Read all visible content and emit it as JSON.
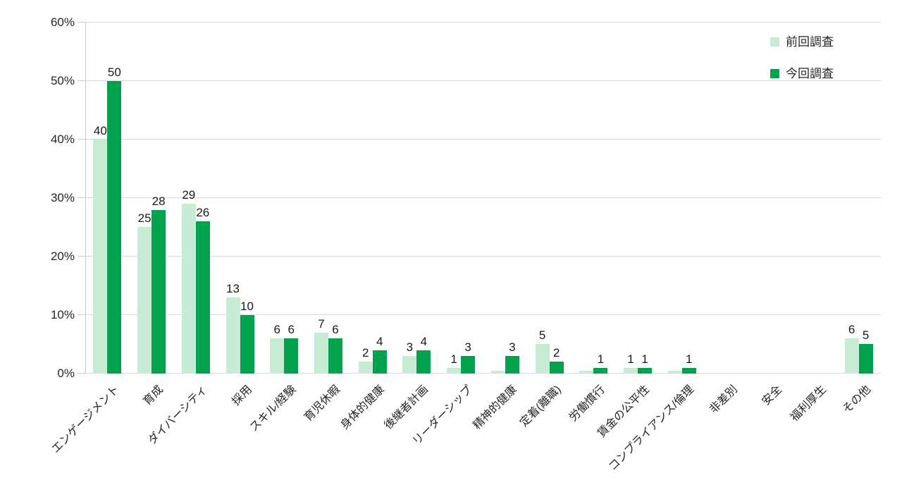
{
  "chart_data": {
    "type": "bar",
    "title": "",
    "xlabel": "",
    "ylabel": "",
    "ylim": [
      0,
      60
    ],
    "ytick_labels": [
      "0%",
      "10%",
      "20%",
      "30%",
      "40%",
      "50%",
      "60%"
    ],
    "grid": true,
    "legend_position": "top-right",
    "categories": [
      "エンゲージメント",
      "育成",
      "ダイバーシティ",
      "採用",
      "スキル/経験",
      "育児休暇",
      "身体的健康",
      "後継者計画",
      "リーダーシップ",
      "精神的健康",
      "定着(離職)",
      "労働慣行",
      "賃金の公平性",
      "コンプライアンス/倫理",
      "非差別",
      "安全",
      "福利厚生",
      "その他"
    ],
    "series": [
      {
        "name": "前回調査",
        "color": "#C8ECD3",
        "values": [
          40,
          25,
          29,
          13,
          6,
          7,
          2,
          3,
          1,
          0.5,
          5,
          0.5,
          1,
          0.5,
          0,
          0,
          0,
          6
        ],
        "data_labels": [
          "40",
          "25",
          "29",
          "13",
          "6",
          "7",
          "2",
          "3",
          "1",
          "",
          "5",
          "",
          "1",
          "",
          "",
          "",
          "",
          "6"
        ]
      },
      {
        "name": "今回調査",
        "color": "#00A24D",
        "values": [
          50,
          28,
          26,
          10,
          6,
          6,
          4,
          4,
          3,
          3,
          2,
          1,
          1,
          1,
          0,
          0,
          0,
          5
        ],
        "data_labels": [
          "50",
          "28",
          "26",
          "10",
          "6",
          "6",
          "4",
          "4",
          "3",
          "3",
          "2",
          "1",
          "1",
          "1",
          "",
          "",
          "",
          "5"
        ]
      }
    ]
  },
  "legend": {
    "items": [
      {
        "label": "前回調査",
        "color": "#C8ECD3"
      },
      {
        "label": "今回調査",
        "color": "#00A24D"
      }
    ]
  },
  "colors": {
    "series_previous": "#C8ECD3",
    "series_current": "#00A24D",
    "gridline": "#D9D9D9",
    "axis": "#C9C9C9",
    "text": "#262626",
    "background": "#FFFFFF"
  }
}
